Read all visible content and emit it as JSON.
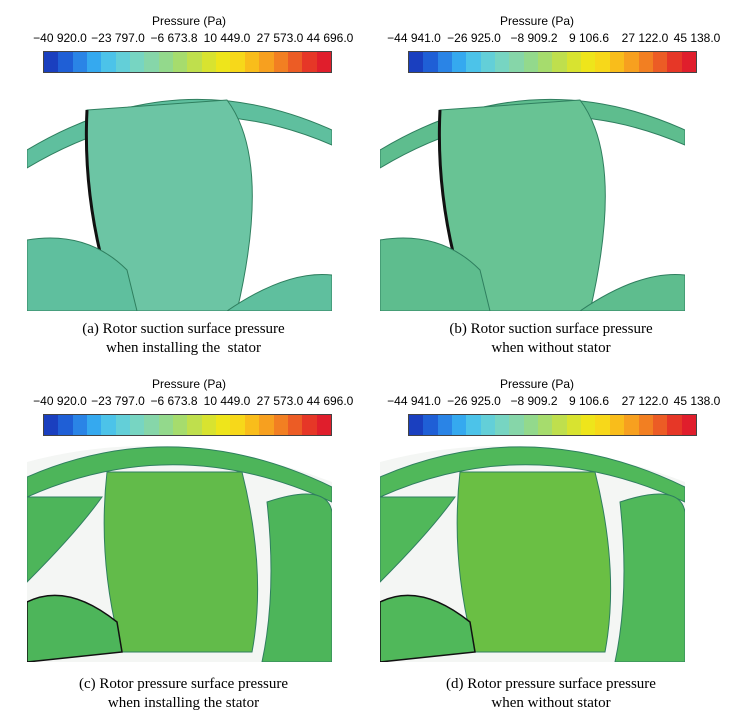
{
  "colorbar_colors": [
    "#1a3fbf",
    "#1f5fd6",
    "#2a84e6",
    "#35a9ef",
    "#4cc3e9",
    "#63cfd8",
    "#77d5c2",
    "#86d6a9",
    "#93d98c",
    "#a6dc6d",
    "#bfdf4d",
    "#d8e330",
    "#eee51b",
    "#f7d81a",
    "#f9bd1b",
    "#f7a01f",
    "#f27f22",
    "#ec5c25",
    "#e63727",
    "#e01e2c"
  ],
  "panels": [
    {
      "legend_title": "Pressure (Pa)",
      "ticks": [
        "−40 920.0",
        "−23 797.0",
        "−6 673.8",
        "10 449.0",
        "27 573.0",
        "44 696.0"
      ],
      "caption_line1": "(a) Rotor suction surface pressure",
      "caption_line2": "when installing the  stator",
      "fill_main": "#5fbf9e",
      "fill_blade": "#6cc5a4"
    },
    {
      "legend_title": "Pressure (Pa)",
      "ticks": [
        "−44 941.0",
        "−26 925.0",
        "−8 909.2",
        "9 106.6",
        "27 122.0",
        "45 138.0"
      ],
      "caption_line1": "(b) Rotor suction surface pressure",
      "caption_line2": "when without stator",
      "fill_main": "#5ebd8e",
      "fill_blade": "#68c394"
    },
    {
      "legend_title": "Pressure (Pa)",
      "ticks": [
        "−40 920.0",
        "−23 797.0",
        "−6 673.8",
        "10 449.0",
        "27 573.0",
        "44 696.0"
      ],
      "caption_line1": "(c) Rotor pressure surface pressure",
      "caption_line2": "when installing the stator",
      "fill_main": "#4db55a",
      "fill_blade": "#62bb4a"
    },
    {
      "legend_title": "Pressure (Pa)",
      "ticks": [
        "−44 941.0",
        "−26 925.0",
        "−8 909.2",
        "9 106.6",
        "27 122.0",
        "45 138.0"
      ],
      "caption_line1": "(d) Rotor pressure surface pressure",
      "caption_line2": "when without stator",
      "fill_main": "#50b85a",
      "fill_blade": "#6abf44"
    }
  ]
}
